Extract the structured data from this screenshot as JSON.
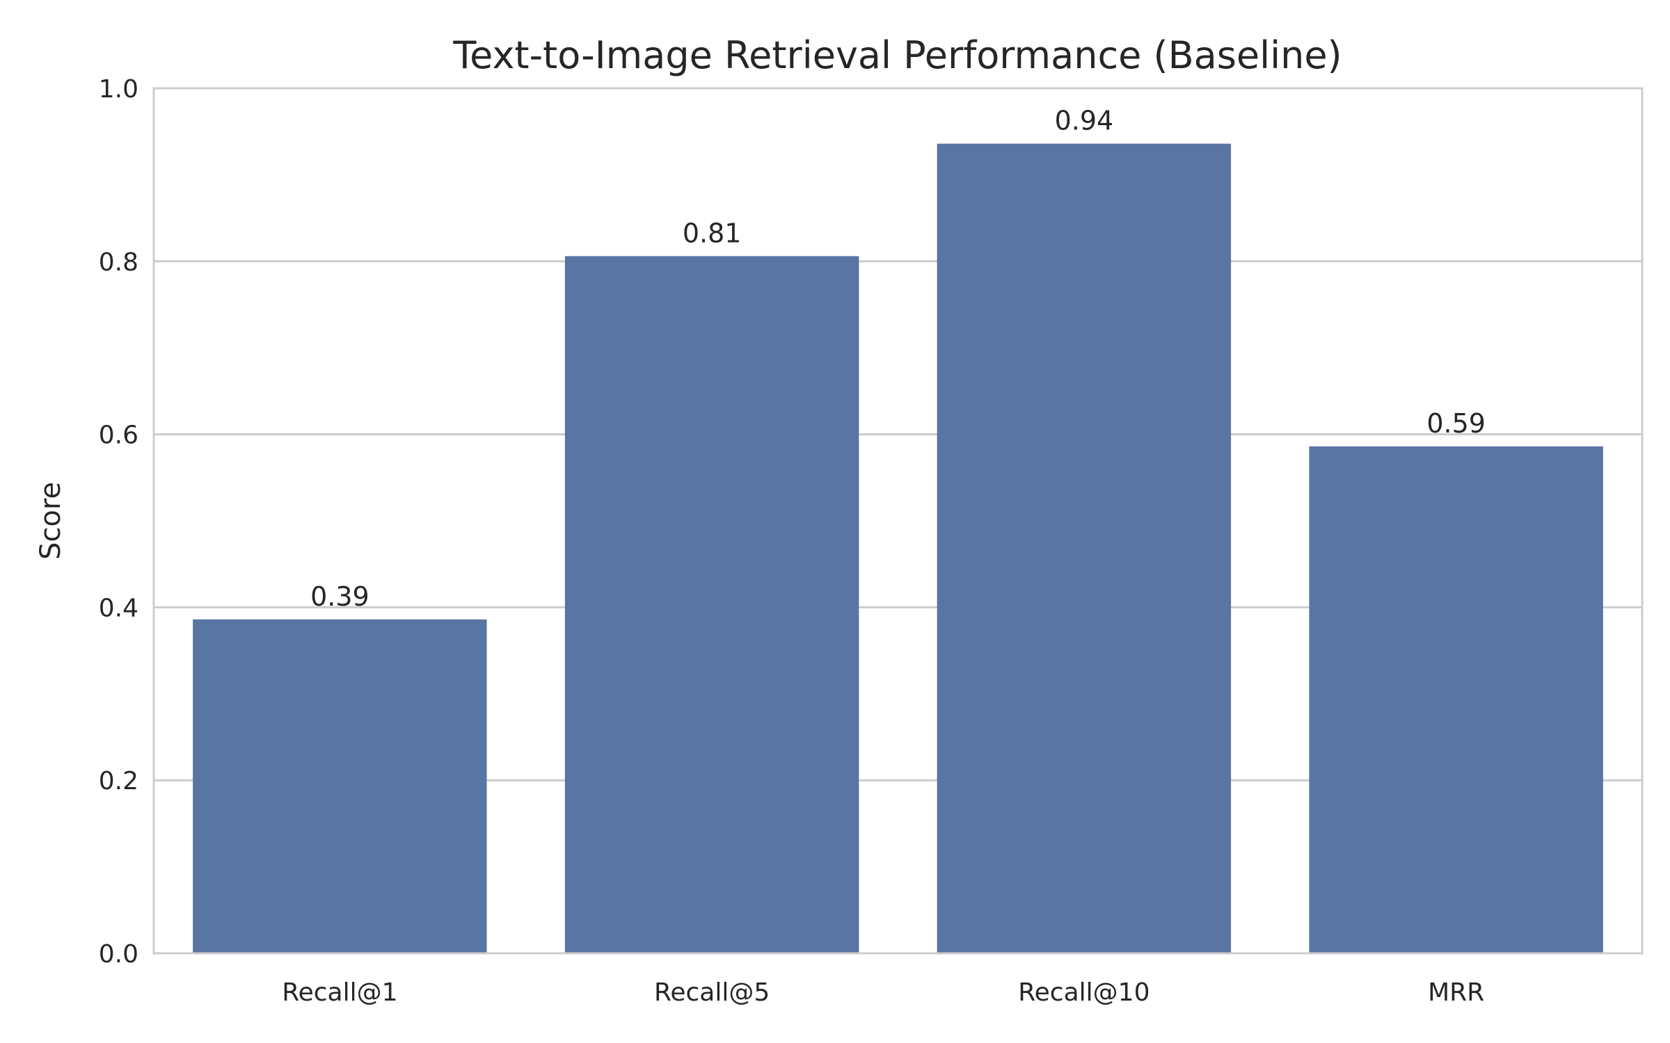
{
  "chart_data": {
    "type": "bar",
    "title": "Text-to-Image Retrieval Performance (Baseline)",
    "xlabel": "",
    "ylabel": "Score",
    "categories": [
      "Recall@1",
      "Recall@5",
      "Recall@10",
      "MRR"
    ],
    "values": [
      0.386,
      0.806,
      0.936,
      0.586
    ],
    "value_labels": [
      "0.39",
      "0.81",
      "0.94",
      "0.59"
    ],
    "ylim": [
      0,
      1.0
    ],
    "yticks": [
      0.0,
      0.2,
      0.4,
      0.6,
      0.8,
      1.0
    ],
    "ytick_labels": [
      "0.0",
      "0.2",
      "0.4",
      "0.6",
      "0.8",
      "1.0"
    ],
    "grid": "y",
    "legend": "none",
    "bar_color": "#5975a4",
    "grid_color": "#cccccc",
    "spine_color": "#cccccc",
    "text_color": "#262626"
  }
}
